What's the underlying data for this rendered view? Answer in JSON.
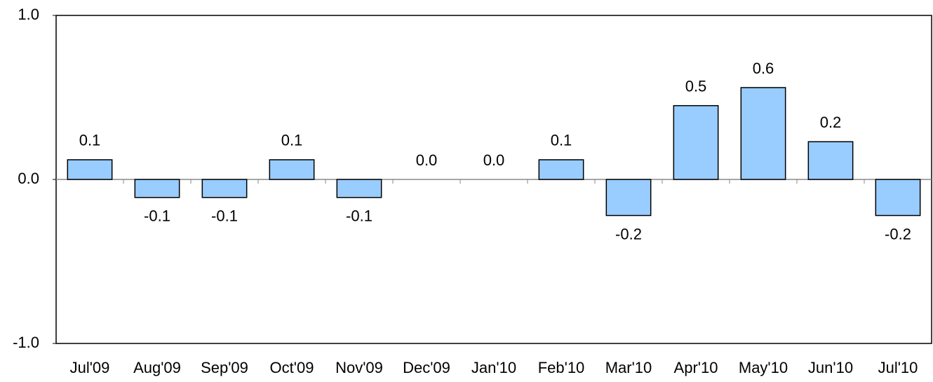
{
  "chart_data": {
    "type": "bar",
    "categories": [
      "Jul'09",
      "Aug'09",
      "Sep'09",
      "Oct'09",
      "Nov'09",
      "Dec'09",
      "Jan'10",
      "Feb'10",
      "Mar'10",
      "Apr'10",
      "May'10",
      "Jun'10",
      "Jul'10"
    ],
    "values": [
      0.12,
      -0.11,
      -0.11,
      0.12,
      -0.11,
      0.0,
      0.0,
      0.12,
      -0.22,
      0.45,
      0.56,
      0.23,
      -0.22
    ],
    "value_labels": [
      "0.1",
      "-0.1",
      "-0.1",
      "0.1",
      "-0.1",
      "0.0",
      "0.0",
      "0.1",
      "-0.2",
      "0.5",
      "0.6",
      "0.2",
      "-0.2"
    ],
    "color": "#99ccff",
    "ylim": [
      -1.0,
      1.0
    ],
    "yticks": [
      {
        "value": -1.0,
        "label": "-1.0"
      },
      {
        "value": 0.0,
        "label": "0.0"
      },
      {
        "value": 1.0,
        "label": "1.0"
      }
    ],
    "grid": false
  }
}
